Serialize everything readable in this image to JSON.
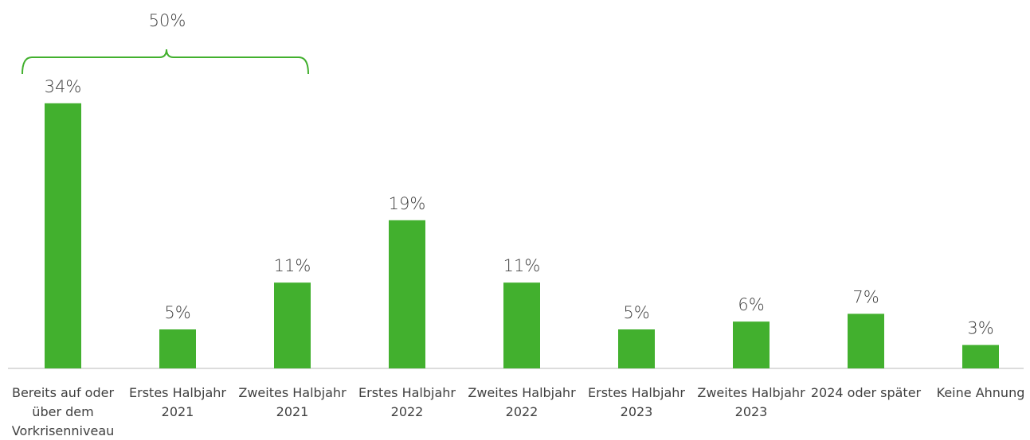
{
  "chart_data": {
    "type": "bar",
    "categories": [
      "Bereits auf oder über dem Vorkrisenniveau",
      "Erstes Halbjahr 2021",
      "Zweites Halbjahr 2021",
      "Erstes Halbjahr 2022",
      "Zweites Halbjahr 2022",
      "Erstes Halbjahr 2023",
      "Zweites Halbjahr 2023",
      "2024 oder später",
      "Keine Ahnung"
    ],
    "values": [
      34,
      5,
      11,
      19,
      11,
      5,
      6,
      7,
      3
    ],
    "value_labels": [
      "34%",
      "5%",
      "11%",
      "19%",
      "11%",
      "5%",
      "6%",
      "7%",
      "3%"
    ],
    "color": "#42b02e",
    "annotation": "50%"
  }
}
